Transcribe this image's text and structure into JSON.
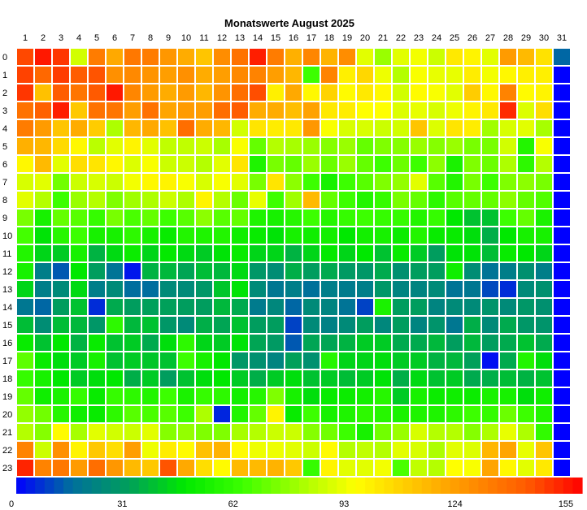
{
  "chart_data": {
    "type": "heatmap",
    "title": "Monatswerte August 2025",
    "xlabel": "",
    "ylabel": "",
    "x_categories": [
      "1",
      "2",
      "3",
      "4",
      "5",
      "6",
      "7",
      "8",
      "9",
      "10",
      "11",
      "12",
      "13",
      "14",
      "15",
      "16",
      "17",
      "18",
      "19",
      "20",
      "21",
      "22",
      "23",
      "24",
      "25",
      "26",
      "27",
      "28",
      "29",
      "30",
      "31"
    ],
    "y_categories": [
      "0",
      "1",
      "2",
      "3",
      "4",
      "5",
      "6",
      "7",
      "8",
      "9",
      "10",
      "11",
      "12",
      "13",
      "14",
      "15",
      "16",
      "17",
      "18",
      "19",
      "20",
      "21",
      "22",
      "23"
    ],
    "colorbar": {
      "min": 0,
      "max": 155,
      "ticks": [
        0,
        31,
        62,
        93,
        124,
        155
      ],
      "stops": [
        {
          "value": 0,
          "color": "#0000ff"
        },
        {
          "value": 15,
          "color": "#006e9e"
        },
        {
          "value": 31,
          "color": "#00a05a"
        },
        {
          "value": 46,
          "color": "#00e800"
        },
        {
          "value": 62,
          "color": "#3cff00"
        },
        {
          "value": 80,
          "color": "#b4ff00"
        },
        {
          "value": 93,
          "color": "#ffff00"
        },
        {
          "value": 108,
          "color": "#ffc800"
        },
        {
          "value": 124,
          "color": "#ff9000"
        },
        {
          "value": 140,
          "color": "#ff5a00"
        },
        {
          "value": 155,
          "color": "#ff0000"
        }
      ]
    },
    "values": [
      [
        143,
        151,
        146,
        85,
        130,
        117,
        131,
        130,
        122,
        116,
        109,
        125,
        133,
        150,
        130,
        115,
        127,
        114,
        125,
        88,
        76,
        88,
        91,
        84,
        99,
        96,
        88,
        121,
        112,
        101,
        14
      ],
      [
        144,
        136,
        145,
        139,
        141,
        124,
        126,
        123,
        120,
        124,
        116,
        120,
        126,
        128,
        120,
        113,
        62,
        128,
        97,
        104,
        90,
        80,
        92,
        89,
        89,
        98,
        91,
        95,
        97,
        97,
        0
      ],
      [
        146,
        110,
        139,
        132,
        140,
        151,
        127,
        121,
        116,
        121,
        113,
        123,
        134,
        142,
        97,
        117,
        95,
        105,
        94,
        99,
        95,
        85,
        94,
        92,
        88,
        107,
        95,
        128,
        94,
        96,
        0
      ],
      [
        133,
        138,
        150,
        108,
        133,
        132,
        120,
        133,
        118,
        121,
        120,
        134,
        139,
        116,
        116,
        111,
        119,
        99,
        98,
        93,
        93,
        87,
        89,
        86,
        90,
        96,
        99,
        148,
        87,
        102,
        0
      ],
      [
        130,
        121,
        109,
        116,
        107,
        79,
        113,
        117,
        110,
        134,
        116,
        113,
        85,
        100,
        98,
        99,
        122,
        92,
        86,
        86,
        84,
        85,
        109,
        87,
        100,
        98,
        77,
        86,
        88,
        78,
        0
      ],
      [
        115,
        113,
        103,
        95,
        81,
        88,
        96,
        88,
        82,
        82,
        84,
        78,
        92,
        68,
        80,
        78,
        76,
        73,
        76,
        68,
        72,
        73,
        76,
        73,
        76,
        71,
        71,
        85,
        55,
        92,
        0
      ],
      [
        95,
        112,
        88,
        102,
        100,
        95,
        87,
        92,
        84,
        84,
        80,
        88,
        100,
        54,
        71,
        68,
        76,
        69,
        76,
        68,
        62,
        69,
        62,
        74,
        53,
        72,
        69,
        79,
        58,
        80,
        0
      ],
      [
        86,
        88,
        70,
        84,
        86,
        84,
        91,
        95,
        96,
        92,
        86,
        92,
        88,
        71,
        100,
        74,
        62,
        52,
        62,
        66,
        72,
        75,
        88,
        66,
        55,
        71,
        62,
        72,
        74,
        71,
        0
      ],
      [
        88,
        80,
        62,
        76,
        80,
        72,
        77,
        79,
        84,
        79,
        96,
        80,
        69,
        89,
        62,
        77,
        112,
        68,
        62,
        55,
        60,
        71,
        68,
        58,
        66,
        68,
        68,
        74,
        68,
        65,
        0
      ],
      [
        71,
        52,
        68,
        66,
        60,
        71,
        64,
        68,
        62,
        66,
        74,
        66,
        68,
        54,
        52,
        56,
        62,
        56,
        60,
        62,
        60,
        60,
        55,
        60,
        46,
        38,
        38,
        62,
        68,
        53,
        0
      ],
      [
        63,
        45,
        56,
        62,
        52,
        52,
        58,
        52,
        48,
        55,
        54,
        55,
        50,
        48,
        45,
        52,
        50,
        51,
        46,
        51,
        52,
        49,
        55,
        48,
        48,
        44,
        34,
        46,
        52,
        52,
        0
      ],
      [
        55,
        42,
        40,
        52,
        35,
        43,
        49,
        42,
        47,
        43,
        40,
        45,
        48,
        42,
        42,
        35,
        42,
        47,
        42,
        46,
        38,
        48,
        40,
        30,
        45,
        45,
        37,
        48,
        46,
        42,
        0
      ],
      [
        52,
        20,
        12,
        46,
        30,
        17,
        3,
        35,
        36,
        32,
        37,
        36,
        43,
        28,
        25,
        34,
        30,
        33,
        29,
        28,
        33,
        26,
        30,
        30,
        50,
        25,
        17,
        20,
        26,
        20,
        0
      ],
      [
        42,
        20,
        24,
        43,
        20,
        24,
        15,
        15,
        24,
        24,
        28,
        39,
        45,
        24,
        18,
        20,
        16,
        20,
        19,
        20,
        28,
        22,
        22,
        24,
        17,
        18,
        10,
        6,
        24,
        26,
        0
      ],
      [
        18,
        14,
        30,
        38,
        6,
        33,
        30,
        31,
        31,
        30,
        30,
        36,
        33,
        19,
        23,
        14,
        24,
        22,
        17,
        9,
        53,
        30,
        30,
        22,
        24,
        24,
        27,
        24,
        28,
        26,
        0
      ],
      [
        37,
        25,
        37,
        36,
        28,
        58,
        36,
        38,
        28,
        24,
        34,
        32,
        38,
        30,
        30,
        9,
        24,
        21,
        24,
        30,
        23,
        30,
        22,
        27,
        18,
        34,
        24,
        33,
        28,
        27,
        0
      ],
      [
        48,
        38,
        46,
        35,
        48,
        38,
        40,
        33,
        44,
        58,
        42,
        40,
        45,
        32,
        29,
        12,
        32,
        32,
        35,
        40,
        40,
        33,
        33,
        36,
        30,
        36,
        30,
        33,
        38,
        33,
        0
      ],
      [
        67,
        48,
        44,
        40,
        52,
        38,
        40,
        39,
        38,
        62,
        52,
        46,
        28,
        26,
        22,
        31,
        26,
        56,
        42,
        42,
        44,
        40,
        40,
        35,
        36,
        31,
        2,
        33,
        55,
        44,
        0
      ],
      [
        60,
        52,
        46,
        40,
        44,
        46,
        34,
        40,
        30,
        38,
        44,
        46,
        40,
        34,
        40,
        44,
        38,
        40,
        37,
        40,
        45,
        34,
        43,
        38,
        40,
        33,
        34,
        37,
        35,
        38,
        0
      ],
      [
        68,
        50,
        53,
        60,
        48,
        60,
        58,
        55,
        62,
        53,
        60,
        58,
        51,
        56,
        72,
        52,
        44,
        48,
        49,
        51,
        56,
        40,
        52,
        49,
        50,
        49,
        53,
        52,
        44,
        50,
        0
      ],
      [
        75,
        70,
        56,
        50,
        48,
        58,
        66,
        64,
        66,
        62,
        79,
        5,
        55,
        68,
        96,
        48,
        62,
        52,
        54,
        58,
        56,
        53,
        54,
        54,
        58,
        62,
        60,
        69,
        62,
        55,
        0
      ],
      [
        80,
        73,
        94,
        78,
        88,
        85,
        84,
        88,
        73,
        75,
        72,
        72,
        78,
        80,
        84,
        84,
        73,
        70,
        62,
        52,
        70,
        76,
        86,
        80,
        80,
        73,
        79,
        89,
        79,
        59,
        0
      ],
      [
        128,
        84,
        124,
        96,
        108,
        102,
        120,
        90,
        98,
        94,
        110,
        114,
        94,
        90,
        90,
        88,
        84,
        94,
        80,
        82,
        80,
        88,
        86,
        79,
        88,
        87,
        113,
        118,
        89,
        109,
        0
      ],
      [
        149,
        128,
        131,
        121,
        134,
        122,
        112,
        108,
        141,
        117,
        102,
        94,
        112,
        112,
        114,
        108,
        60,
        96,
        88,
        88,
        91,
        64,
        82,
        80,
        93,
        92,
        118,
        95,
        88,
        99,
        0
      ]
    ]
  }
}
